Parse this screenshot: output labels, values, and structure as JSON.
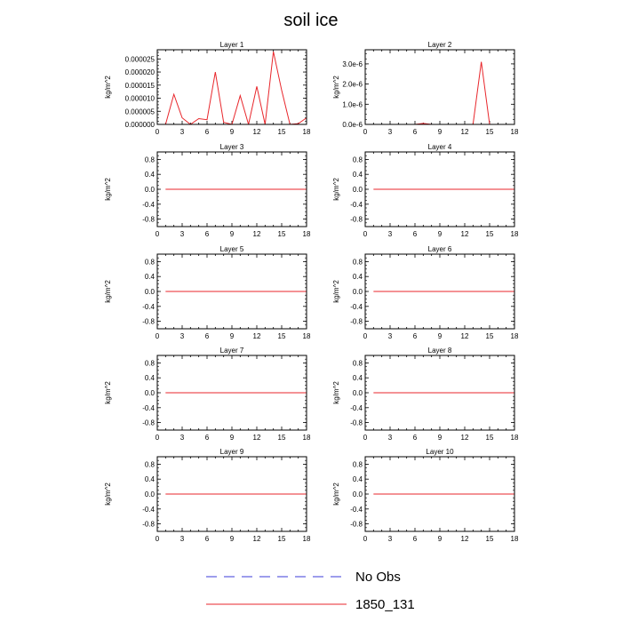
{
  "title": "soil ice",
  "legend": [
    {
      "label": "No Obs",
      "color": "#3b3bd8",
      "style": "dashed"
    },
    {
      "label": "1850_131",
      "color": "#e8262b",
      "style": "solid"
    }
  ],
  "chart_data": [
    {
      "type": "line",
      "title": "Layer 1",
      "ylabel": "kg/m^2",
      "xlim": [
        0,
        18
      ],
      "ylim": [
        0,
        2.85e-05
      ],
      "xticks": [
        "0",
        "3",
        "6",
        "9",
        "12",
        "15",
        "18"
      ],
      "yticks": [
        {
          "v": 0,
          "label": "0.000000"
        },
        {
          "v": 5e-06,
          "label": "0.000005"
        },
        {
          "v": 1e-05,
          "label": "0.000010"
        },
        {
          "v": 1.5e-05,
          "label": "0.000015"
        },
        {
          "v": 2e-05,
          "label": "0.000020"
        },
        {
          "v": 2.5e-05,
          "label": "0.000025"
        }
      ],
      "series": [
        {
          "name": "1850_131",
          "color": "#e8262b",
          "x": [
            1,
            2,
            3,
            4,
            5,
            6,
            7,
            8,
            9,
            10,
            11,
            12,
            13,
            14,
            15,
            16,
            17,
            18
          ],
          "y": [
            0,
            1.15e-05,
            2.5e-06,
            0,
            2.2e-06,
            1.8e-06,
            2e-05,
            8e-07,
            0,
            1.1e-05,
            0,
            1.45e-05,
            0,
            2.78e-05,
            1.3e-05,
            0,
            3e-07,
            2.5e-06
          ]
        }
      ]
    },
    {
      "type": "line",
      "title": "Layer 2",
      "ylabel": "kg/m^2",
      "xlim": [
        0,
        18
      ],
      "ylim": [
        0,
        3.7e-06
      ],
      "xticks": [
        "0",
        "3",
        "6",
        "9",
        "12",
        "15",
        "18"
      ],
      "yticks": [
        {
          "v": 0,
          "label": "0.0e-6"
        },
        {
          "v": 1e-06,
          "label": "1.0e-6"
        },
        {
          "v": 2e-06,
          "label": "2.0e-6"
        },
        {
          "v": 3e-06,
          "label": "3.0e-6"
        }
      ],
      "series": [
        {
          "name": "1850_131",
          "color": "#e8262b",
          "x": [
            1,
            2,
            3,
            4,
            5,
            6,
            7,
            8,
            9,
            10,
            11,
            12,
            13,
            14,
            15,
            16,
            17,
            18
          ],
          "y": [
            0,
            0,
            0,
            0,
            0,
            0,
            5e-08,
            0,
            0,
            0,
            0,
            0,
            0,
            3.1e-06,
            0,
            0,
            0,
            0
          ]
        }
      ]
    },
    {
      "type": "line",
      "title": "Layer 3",
      "ylabel": "kg/m^2",
      "xlim": [
        0,
        18
      ],
      "ylim": [
        -1,
        1
      ],
      "xticks": [
        "0",
        "3",
        "6",
        "9",
        "12",
        "15",
        "18"
      ],
      "yticks": [
        {
          "v": 0.8,
          "label": "0.8"
        },
        {
          "v": 0.4,
          "label": "0.4"
        },
        {
          "v": 0,
          "label": "0.0"
        },
        {
          "v": -0.4,
          "label": "-0.4"
        },
        {
          "v": -0.8,
          "label": "-0.8"
        }
      ],
      "series": [
        {
          "name": "1850_131",
          "color": "#e8262b",
          "x": [
            1,
            18
          ],
          "y": [
            0,
            0
          ]
        }
      ]
    },
    {
      "type": "line",
      "title": "Layer 4",
      "ylabel": "kg/m^2",
      "xlim": [
        0,
        18
      ],
      "ylim": [
        -1,
        1
      ],
      "xticks": [
        "0",
        "3",
        "6",
        "9",
        "12",
        "15",
        "18"
      ],
      "yticks": [
        {
          "v": 0.8,
          "label": "0.8"
        },
        {
          "v": 0.4,
          "label": "0.4"
        },
        {
          "v": 0,
          "label": "0.0"
        },
        {
          "v": -0.4,
          "label": "-0.4"
        },
        {
          "v": -0.8,
          "label": "-0.8"
        }
      ],
      "series": [
        {
          "name": "1850_131",
          "color": "#e8262b",
          "x": [
            1,
            18
          ],
          "y": [
            0,
            0
          ]
        }
      ]
    },
    {
      "type": "line",
      "title": "Layer 5",
      "ylabel": "kg/m^2",
      "xlim": [
        0,
        18
      ],
      "ylim": [
        -1,
        1
      ],
      "xticks": [
        "0",
        "3",
        "6",
        "9",
        "12",
        "15",
        "18"
      ],
      "yticks": [
        {
          "v": 0.8,
          "label": "0.8"
        },
        {
          "v": 0.4,
          "label": "0.4"
        },
        {
          "v": 0,
          "label": "0.0"
        },
        {
          "v": -0.4,
          "label": "-0.4"
        },
        {
          "v": -0.8,
          "label": "-0.8"
        }
      ],
      "series": [
        {
          "name": "1850_131",
          "color": "#e8262b",
          "x": [
            1,
            18
          ],
          "y": [
            0,
            0
          ]
        }
      ]
    },
    {
      "type": "line",
      "title": "Layer 6",
      "ylabel": "kg/m^2",
      "xlim": [
        0,
        18
      ],
      "ylim": [
        -1,
        1
      ],
      "xticks": [
        "0",
        "3",
        "6",
        "9",
        "12",
        "15",
        "18"
      ],
      "yticks": [
        {
          "v": 0.8,
          "label": "0.8"
        },
        {
          "v": 0.4,
          "label": "0.4"
        },
        {
          "v": 0,
          "label": "0.0"
        },
        {
          "v": -0.4,
          "label": "-0.4"
        },
        {
          "v": -0.8,
          "label": "-0.8"
        }
      ],
      "series": [
        {
          "name": "1850_131",
          "color": "#e8262b",
          "x": [
            1,
            18
          ],
          "y": [
            0,
            0
          ]
        }
      ]
    },
    {
      "type": "line",
      "title": "Layer 7",
      "ylabel": "kg/m^2",
      "xlim": [
        0,
        18
      ],
      "ylim": [
        -1,
        1
      ],
      "xticks": [
        "0",
        "3",
        "6",
        "9",
        "12",
        "15",
        "18"
      ],
      "yticks": [
        {
          "v": 0.8,
          "label": "0.8"
        },
        {
          "v": 0.4,
          "label": "0.4"
        },
        {
          "v": 0,
          "label": "0.0"
        },
        {
          "v": -0.4,
          "label": "-0.4"
        },
        {
          "v": -0.8,
          "label": "-0.8"
        }
      ],
      "series": [
        {
          "name": "1850_131",
          "color": "#e8262b",
          "x": [
            1,
            18
          ],
          "y": [
            0,
            0
          ]
        }
      ]
    },
    {
      "type": "line",
      "title": "Layer 8",
      "ylabel": "kg/m^2",
      "xlim": [
        0,
        18
      ],
      "ylim": [
        -1,
        1
      ],
      "xticks": [
        "0",
        "3",
        "6",
        "9",
        "12",
        "15",
        "18"
      ],
      "yticks": [
        {
          "v": 0.8,
          "label": "0.8"
        },
        {
          "v": 0.4,
          "label": "0.4"
        },
        {
          "v": 0,
          "label": "0.0"
        },
        {
          "v": -0.4,
          "label": "-0.4"
        },
        {
          "v": -0.8,
          "label": "-0.8"
        }
      ],
      "series": [
        {
          "name": "1850_131",
          "color": "#e8262b",
          "x": [
            1,
            18
          ],
          "y": [
            0,
            0
          ]
        }
      ]
    },
    {
      "type": "line",
      "title": "Layer 9",
      "ylabel": "kg/m^2",
      "xlim": [
        0,
        18
      ],
      "ylim": [
        -1,
        1
      ],
      "xticks": [
        "0",
        "3",
        "6",
        "9",
        "12",
        "15",
        "18"
      ],
      "yticks": [
        {
          "v": 0.8,
          "label": "0.8"
        },
        {
          "v": 0.4,
          "label": "0.4"
        },
        {
          "v": 0,
          "label": "0.0"
        },
        {
          "v": -0.4,
          "label": "-0.4"
        },
        {
          "v": -0.8,
          "label": "-0.8"
        }
      ],
      "series": [
        {
          "name": "1850_131",
          "color": "#e8262b",
          "x": [
            1,
            18
          ],
          "y": [
            0,
            0
          ]
        }
      ]
    },
    {
      "type": "line",
      "title": "Layer 10",
      "ylabel": "kg/m^2",
      "xlim": [
        0,
        18
      ],
      "ylim": [
        -1,
        1
      ],
      "xticks": [
        "0",
        "3",
        "6",
        "9",
        "12",
        "15",
        "18"
      ],
      "yticks": [
        {
          "v": 0.8,
          "label": "0.8"
        },
        {
          "v": 0.4,
          "label": "0.4"
        },
        {
          "v": 0,
          "label": "0.0"
        },
        {
          "v": -0.4,
          "label": "-0.4"
        },
        {
          "v": -0.8,
          "label": "-0.8"
        }
      ],
      "series": [
        {
          "name": "1850_131",
          "color": "#e8262b",
          "x": [
            1,
            18
          ],
          "y": [
            0,
            0
          ]
        }
      ]
    }
  ]
}
